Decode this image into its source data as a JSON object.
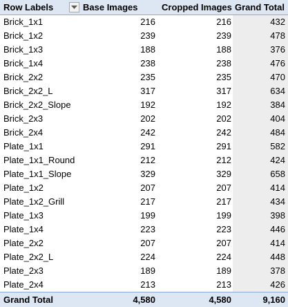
{
  "pivot": {
    "headers": {
      "row_labels": "Row Labels",
      "base_images": "Base Images",
      "cropped_images": "Cropped Images",
      "grand_total": "Grand Total"
    },
    "rows": [
      {
        "label": "Brick_1x1",
        "base": "216",
        "cropped": "216",
        "total": "432"
      },
      {
        "label": "Brick_1x2",
        "base": "239",
        "cropped": "239",
        "total": "478"
      },
      {
        "label": "Brick_1x3",
        "base": "188",
        "cropped": "188",
        "total": "376"
      },
      {
        "label": "Brick_1x4",
        "base": "238",
        "cropped": "238",
        "total": "476"
      },
      {
        "label": "Brick_2x2",
        "base": "235",
        "cropped": "235",
        "total": "470"
      },
      {
        "label": "Brick_2x2_L",
        "base": "317",
        "cropped": "317",
        "total": "634"
      },
      {
        "label": "Brick_2x2_Slope",
        "base": "192",
        "cropped": "192",
        "total": "384"
      },
      {
        "label": "Brick_2x3",
        "base": "202",
        "cropped": "202",
        "total": "404"
      },
      {
        "label": "Brick_2x4",
        "base": "242",
        "cropped": "242",
        "total": "484"
      },
      {
        "label": "Plate_1x1",
        "base": "291",
        "cropped": "291",
        "total": "582"
      },
      {
        "label": "Plate_1x1_Round",
        "base": "212",
        "cropped": "212",
        "total": "424"
      },
      {
        "label": "Plate_1x1_Slope",
        "base": "329",
        "cropped": "329",
        "total": "658"
      },
      {
        "label": "Plate_1x2",
        "base": "207",
        "cropped": "207",
        "total": "414"
      },
      {
        "label": "Plate_1x2_Grill",
        "base": "217",
        "cropped": "217",
        "total": "434"
      },
      {
        "label": "Plate_1x3",
        "base": "199",
        "cropped": "199",
        "total": "398"
      },
      {
        "label": "Plate_1x4",
        "base": "223",
        "cropped": "223",
        "total": "446"
      },
      {
        "label": "Plate_2x2",
        "base": "207",
        "cropped": "207",
        "total": "414"
      },
      {
        "label": "Plate_2x2_L",
        "base": "224",
        "cropped": "224",
        "total": "448"
      },
      {
        "label": "Plate_2x3",
        "base": "189",
        "cropped": "189",
        "total": "378"
      },
      {
        "label": "Plate_2x4",
        "base": "213",
        "cropped": "213",
        "total": "426"
      }
    ],
    "grand_total": {
      "label": "Grand Total",
      "base": "4,580",
      "cropped": "4,580",
      "total": "9,160"
    },
    "filter_icon": "filter-dropdown-arrow-icon",
    "colors": {
      "header_bg": "#dde6f3",
      "header_border": "#8eaadb",
      "total_column_bg": "#ededed"
    }
  }
}
